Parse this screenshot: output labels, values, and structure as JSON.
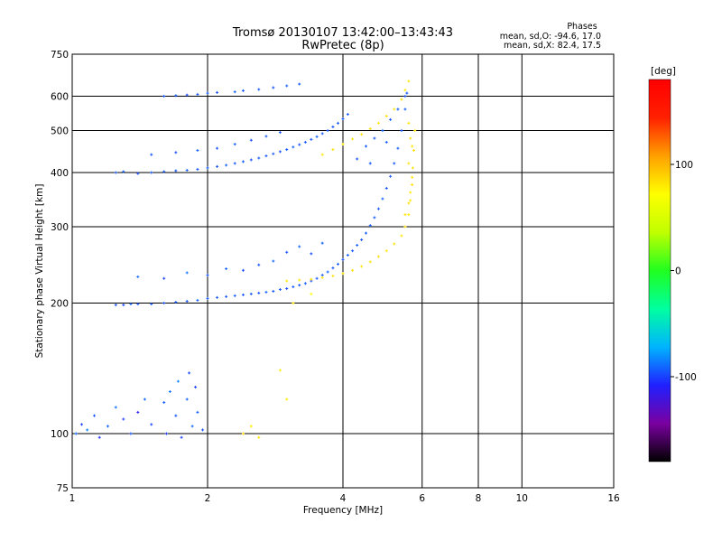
{
  "chart_data": {
    "type": "scatter",
    "title": "Tromsø 20130107 13:42:00–13:43:43",
    "subtitle": "RwPretec (8p)",
    "xlabel": "Frequency [MHz]",
    "ylabel": "Stationary phase Virtual Height [km]",
    "x_scale": "log",
    "y_scale": "log",
    "xlim": [
      1,
      16
    ],
    "ylim": [
      75,
      750
    ],
    "x_ticks": [
      1,
      2,
      4,
      6,
      8,
      10,
      16
    ],
    "y_ticks": [
      75,
      100,
      200,
      300,
      400,
      500,
      600,
      750
    ],
    "grid": true,
    "phase_stats": {
      "heading": "Phases",
      "o_line": "mean, sd,O: -94.6, 17.0",
      "x_line": "mean, sd,X:  82.4, 17.5"
    },
    "colorbar": {
      "label": "[deg]",
      "range": [
        -180,
        180
      ],
      "ticks": [
        100,
        0,
        -100
      ],
      "colors": [
        "#000000",
        "#7a00a0",
        "#2020ff",
        "#00b4ff",
        "#00ffa0",
        "#20ff20",
        "#c0ff00",
        "#ffff00",
        "#ffa000",
        "#ff2000",
        "#ff0000"
      ]
    },
    "series": [
      {
        "phase_mean": -94.6,
        "points": [
          [
            1.02,
            100,
            -90
          ],
          [
            1.05,
            105,
            -100
          ],
          [
            1.08,
            102,
            -85
          ],
          [
            1.12,
            110,
            -95
          ],
          [
            1.15,
            98,
            -105
          ],
          [
            1.2,
            104,
            -92
          ],
          [
            1.25,
            115,
            -88
          ],
          [
            1.3,
            108,
            -100
          ],
          [
            1.35,
            100,
            -96
          ],
          [
            1.4,
            112,
            -110
          ],
          [
            1.45,
            120,
            -90
          ],
          [
            1.5,
            105,
            -98
          ],
          [
            1.6,
            118,
            -94
          ],
          [
            1.62,
            100,
            -102
          ],
          [
            1.65,
            125,
            -88
          ],
          [
            1.7,
            110,
            -95
          ],
          [
            1.72,
            132,
            -84
          ],
          [
            1.75,
            98,
            -99
          ],
          [
            1.8,
            120,
            -92
          ],
          [
            1.82,
            138,
            -97
          ],
          [
            1.85,
            104,
            -90
          ],
          [
            1.88,
            128,
            -100
          ],
          [
            1.9,
            112,
            -93
          ],
          [
            1.95,
            102,
            -96
          ],
          [
            1.25,
            198,
            -95
          ],
          [
            1.3,
            198,
            -98
          ],
          [
            1.35,
            199,
            -92
          ],
          [
            1.4,
            199,
            -95
          ],
          [
            1.5,
            199,
            -94
          ],
          [
            1.6,
            200,
            -96
          ],
          [
            1.7,
            201,
            -93
          ],
          [
            1.8,
            202,
            -95
          ],
          [
            1.9,
            203,
            -92
          ],
          [
            2.0,
            205,
            -95
          ],
          [
            2.1,
            206,
            -94
          ],
          [
            2.2,
            207,
            -96
          ],
          [
            2.3,
            208,
            -93
          ],
          [
            2.4,
            209,
            -95
          ],
          [
            2.5,
            210,
            -94
          ],
          [
            2.6,
            211,
            -96
          ],
          [
            2.7,
            212,
            -92
          ],
          [
            2.8,
            213,
            -95
          ],
          [
            2.9,
            215,
            -93
          ],
          [
            3.0,
            216,
            -96
          ],
          [
            3.1,
            218,
            -94
          ],
          [
            3.2,
            220,
            -95
          ],
          [
            3.3,
            222,
            -93
          ],
          [
            3.4,
            225,
            -96
          ],
          [
            3.5,
            228,
            -94
          ],
          [
            3.6,
            232,
            -95
          ],
          [
            3.7,
            236,
            -92
          ],
          [
            3.8,
            241,
            -95
          ],
          [
            3.9,
            246,
            -94
          ],
          [
            4.0,
            252,
            -96
          ],
          [
            4.1,
            258,
            -93
          ],
          [
            4.2,
            264,
            -95
          ],
          [
            4.3,
            272,
            -94
          ],
          [
            4.4,
            280,
            -96
          ],
          [
            4.5,
            290,
            -93
          ],
          [
            4.6,
            302,
            -95
          ],
          [
            4.7,
            315,
            -94
          ],
          [
            4.8,
            330,
            -95
          ],
          [
            4.9,
            348,
            -92
          ],
          [
            5.0,
            368,
            -96
          ],
          [
            5.1,
            392,
            -94
          ],
          [
            5.2,
            420,
            -95
          ],
          [
            5.3,
            455,
            -93
          ],
          [
            5.4,
            500,
            -95
          ],
          [
            5.5,
            560,
            -94
          ],
          [
            5.55,
            610,
            -96
          ],
          [
            1.4,
            230,
            -90
          ],
          [
            1.6,
            228,
            -100
          ],
          [
            1.8,
            235,
            -88
          ],
          [
            2.0,
            232,
            -95
          ],
          [
            2.2,
            240,
            -92
          ],
          [
            2.4,
            238,
            -98
          ],
          [
            2.6,
            245,
            -95
          ],
          [
            2.8,
            250,
            -90
          ],
          [
            3.0,
            262,
            -96
          ],
          [
            3.2,
            270,
            -92
          ],
          [
            3.4,
            260,
            -98
          ],
          [
            3.6,
            275,
            -94
          ],
          [
            1.25,
            400,
            -95
          ],
          [
            1.3,
            402,
            -92
          ],
          [
            1.4,
            398,
            -98
          ],
          [
            1.5,
            400,
            -95
          ],
          [
            1.6,
            402,
            -94
          ],
          [
            1.7,
            404,
            -96
          ],
          [
            1.8,
            405,
            -93
          ],
          [
            1.9,
            407,
            -95
          ],
          [
            2.0,
            410,
            -94
          ],
          [
            2.1,
            413,
            -96
          ],
          [
            2.2,
            416,
            -92
          ],
          [
            2.3,
            420,
            -95
          ],
          [
            2.4,
            424,
            -94
          ],
          [
            2.5,
            428,
            -96
          ],
          [
            2.6,
            432,
            -93
          ],
          [
            2.7,
            437,
            -95
          ],
          [
            2.8,
            442,
            -94
          ],
          [
            2.9,
            447,
            -96
          ],
          [
            3.0,
            452,
            -95
          ],
          [
            3.1,
            458,
            -93
          ],
          [
            3.2,
            464,
            -95
          ],
          [
            3.3,
            470,
            -94
          ],
          [
            3.4,
            477,
            -96
          ],
          [
            3.5,
            484,
            -92
          ],
          [
            3.6,
            492,
            -95
          ],
          [
            3.7,
            500,
            -94
          ],
          [
            3.8,
            510,
            -96
          ],
          [
            3.9,
            520,
            -93
          ],
          [
            4.0,
            532,
            -95
          ],
          [
            4.1,
            545,
            -94
          ],
          [
            1.5,
            440,
            -95
          ],
          [
            1.7,
            445,
            -98
          ],
          [
            1.9,
            450,
            -92
          ],
          [
            2.1,
            455,
            -95
          ],
          [
            2.3,
            465,
            -94
          ],
          [
            2.5,
            475,
            -96
          ],
          [
            2.7,
            485,
            -93
          ],
          [
            2.9,
            495,
            -95
          ],
          [
            1.6,
            600,
            -95
          ],
          [
            1.7,
            602,
            -92
          ],
          [
            1.8,
            604,
            -98
          ],
          [
            1.9,
            606,
            -95
          ],
          [
            2.0,
            610,
            -94
          ],
          [
            2.1,
            612,
            -96
          ],
          [
            2.3,
            614,
            -93
          ],
          [
            2.4,
            618,
            -95
          ],
          [
            2.6,
            622,
            -94
          ],
          [
            2.8,
            628,
            -96
          ],
          [
            3.0,
            634,
            -93
          ],
          [
            3.2,
            640,
            -95
          ],
          [
            4.3,
            430,
            -95
          ],
          [
            4.5,
            460,
            -94
          ],
          [
            4.7,
            480,
            -96
          ],
          [
            4.9,
            500,
            -93
          ],
          [
            5.1,
            530,
            -95
          ],
          [
            5.3,
            560,
            -94
          ],
          [
            5.5,
            600,
            -96
          ],
          [
            4.6,
            420,
            -95
          ],
          [
            5.0,
            470,
            -94
          ]
        ]
      },
      {
        "phase_mean": 82.4,
        "points": [
          [
            3.0,
            225,
            80
          ],
          [
            3.2,
            226,
            82
          ],
          [
            3.4,
            227,
            84
          ],
          [
            3.6,
            229,
            80
          ],
          [
            3.8,
            231,
            83
          ],
          [
            4.0,
            234,
            82
          ],
          [
            4.2,
            238,
            85
          ],
          [
            4.4,
            243,
            80
          ],
          [
            4.6,
            249,
            82
          ],
          [
            4.8,
            256,
            84
          ],
          [
            5.0,
            264,
            81
          ],
          [
            5.2,
            274,
            83
          ],
          [
            5.4,
            286,
            82
          ],
          [
            5.5,
            300,
            84
          ],
          [
            5.6,
            320,
            80
          ],
          [
            5.65,
            345,
            82
          ],
          [
            5.7,
            375,
            83
          ],
          [
            5.72,
            410,
            82
          ],
          [
            5.75,
            450,
            84
          ],
          [
            5.78,
            500,
            81
          ],
          [
            3.6,
            440,
            82
          ],
          [
            3.8,
            452,
            84
          ],
          [
            4.0,
            465,
            80
          ],
          [
            4.2,
            478,
            83
          ],
          [
            4.4,
            490,
            82
          ],
          [
            4.6,
            505,
            84
          ],
          [
            4.8,
            520,
            81
          ],
          [
            5.0,
            540,
            83
          ],
          [
            5.2,
            560,
            82
          ],
          [
            5.4,
            590,
            85
          ],
          [
            5.5,
            620,
            80
          ],
          [
            5.6,
            650,
            82
          ],
          [
            5.5,
            320,
            82
          ],
          [
            5.6,
            340,
            84
          ],
          [
            5.65,
            360,
            80
          ],
          [
            5.7,
            390,
            82
          ],
          [
            5.6,
            420,
            83
          ],
          [
            5.7,
            460,
            80
          ],
          [
            5.65,
            480,
            84
          ],
          [
            5.6,
            520,
            82
          ],
          [
            2.4,
            100,
            85
          ],
          [
            2.5,
            104,
            80
          ],
          [
            2.6,
            98,
            82
          ],
          [
            3.0,
            120,
            80
          ],
          [
            2.9,
            140,
            78
          ],
          [
            3.1,
            200,
            82
          ],
          [
            3.4,
            210,
            70
          ]
        ]
      }
    ]
  }
}
